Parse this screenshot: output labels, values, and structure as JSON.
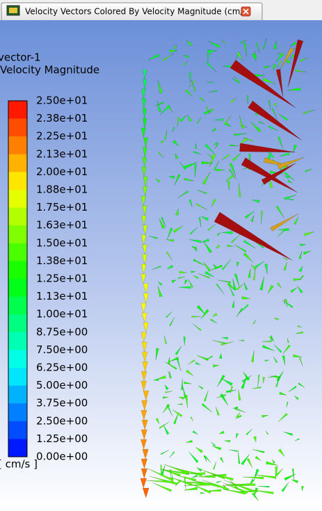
{
  "tab": {
    "title": "Velocity Vectors Colored By Velocity Magnitude (cm/s)"
  },
  "legend": {
    "name": "vector-1",
    "quantity": "Velocity Magnitude",
    "labels": [
      "2.50e+01",
      "2.38e+01",
      "2.25e+01",
      "2.13e+01",
      "2.00e+01",
      "1.88e+01",
      "1.75e+01",
      "1.63e+01",
      "1.50e+01",
      "1.38e+01",
      "1.25e+01",
      "1.13e+01",
      "1.00e+01",
      "8.75e+00",
      "7.50e+00",
      "6.25e+00",
      "5.00e+00",
      "3.75e+00",
      "2.50e+00",
      "1.25e+00",
      "0.00e+00"
    ],
    "unit": "[ cm/s ]"
  }
}
